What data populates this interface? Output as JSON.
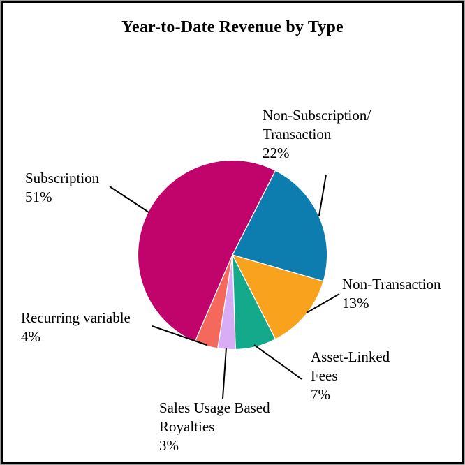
{
  "title": "Year-to-Date Revenue by Type",
  "chart_data": {
    "type": "pie",
    "title": "Year-to-Date Revenue by Type",
    "legend_position": "none",
    "start_angle_deg": 27,
    "center": [
      333,
      365
    ],
    "radius": 135,
    "separator_color": "#ffffff",
    "leader_line_color": "#000000",
    "slices": [
      {
        "name": "Non-Subscription/Transaction",
        "value_pct": 22,
        "color": "#0D7CAE",
        "label_lines": [
          "Non-Subscription/",
          "Transaction",
          "22%"
        ],
        "leader": [
          467,
          250,
          457,
          309
        ]
      },
      {
        "name": "Non-Transaction",
        "value_pct": 13,
        "color": "#F9A21D",
        "label_lines": [
          "Non-Transaction",
          "13%"
        ],
        "leader": [
          486,
          421,
          439,
          448
        ]
      },
      {
        "name": "Asset-Linked Fees",
        "value_pct": 7,
        "color": "#13A98A",
        "label_lines": [
          "Asset-Linked",
          "Fees",
          "7%"
        ],
        "leader": [
          432,
          543,
          364,
          494
        ]
      },
      {
        "name": "Sales Usage Based Royalties",
        "value_pct": 3,
        "color": "#D9ADF5",
        "label_lines": [
          "Sales Usage Based",
          "Royalties",
          "3%"
        ],
        "leader": [
          319,
          571,
          324,
          498
        ]
      },
      {
        "name": "Recurring variable",
        "value_pct": 4,
        "color": "#F5695C",
        "label_lines": [
          "Recurring variable",
          "4%"
        ],
        "leader": [
          218,
          467,
          296,
          494
        ]
      },
      {
        "name": "Subscription",
        "value_pct": 51,
        "color": "#C1046B",
        "label_lines": [
          "Subscription",
          "51%"
        ],
        "leader": [
          157,
          267,
          213,
          304
        ]
      }
    ]
  }
}
